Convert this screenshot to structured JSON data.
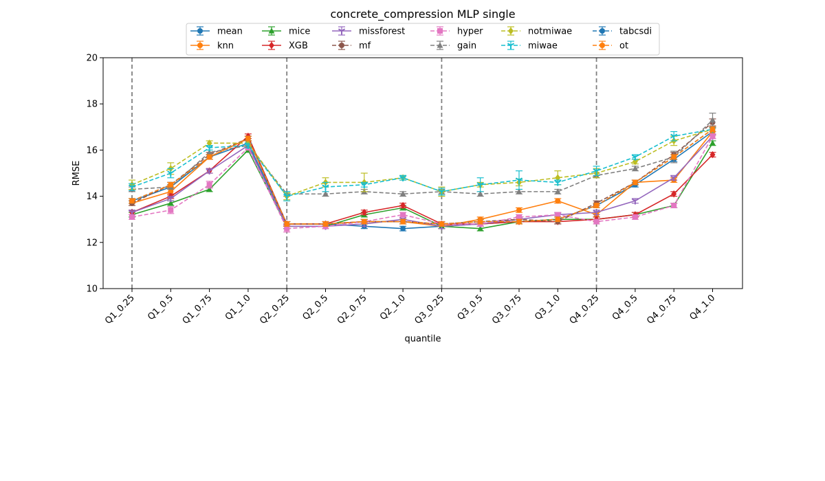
{
  "chart_data": {
    "type": "line",
    "title": "concrete_compression MLP single",
    "xlabel": "quantile",
    "ylabel": "RMSE",
    "ylim": [
      10,
      20
    ],
    "yticks": [
      10,
      12,
      14,
      16,
      18,
      20
    ],
    "grid": false,
    "legend_position": "top-center",
    "vlines_at": [
      "Q1_0.25",
      "Q2_0.25",
      "Q3_0.25",
      "Q4_0.25"
    ],
    "categories": [
      "Q1_0.25",
      "Q1_0.5",
      "Q1_0.75",
      "Q1_1.0",
      "Q2_0.25",
      "Q2_0.5",
      "Q2_0.75",
      "Q2_1.0",
      "Q3_0.25",
      "Q3_0.5",
      "Q3_0.75",
      "Q3_1.0",
      "Q4_0.25",
      "Q4_0.5",
      "Q4_0.75",
      "Q4_1.0"
    ],
    "series": [
      {
        "name": "mean",
        "color": "#1f77b4",
        "dash": "solid",
        "marker": "circle",
        "values": [
          13.8,
          14.4,
          15.7,
          16.3,
          12.8,
          12.8,
          12.7,
          12.6,
          12.7,
          12.8,
          12.9,
          13.0,
          13.6,
          14.5,
          15.6,
          16.8
        ],
        "errors": [
          0.1,
          0.1,
          0.1,
          0.1,
          0.1,
          0.1,
          0.1,
          0.1,
          0.1,
          0.1,
          0.1,
          0.1,
          0.1,
          0.1,
          0.1,
          0.15
        ]
      },
      {
        "name": "knn",
        "color": "#ff7f0e",
        "dash": "solid",
        "marker": "circle",
        "values": [
          13.7,
          14.2,
          15.7,
          16.5,
          12.8,
          12.8,
          12.9,
          12.9,
          12.7,
          13.0,
          13.4,
          13.8,
          13.2,
          14.6,
          14.7,
          16.8
        ],
        "errors": [
          0.1,
          0.15,
          0.1,
          0.1,
          0.1,
          0.1,
          0.1,
          0.1,
          0.1,
          0.1,
          0.1,
          0.1,
          0.1,
          0.1,
          0.1,
          0.15
        ]
      },
      {
        "name": "mice",
        "color": "#2ca02c",
        "dash": "solid",
        "marker": "triangle",
        "values": [
          13.2,
          13.7,
          14.3,
          16.0,
          12.7,
          12.7,
          13.2,
          13.5,
          12.7,
          12.6,
          12.9,
          13.0,
          13.0,
          13.2,
          13.6,
          16.3
        ],
        "errors": [
          0.1,
          0.1,
          0.1,
          0.1,
          0.1,
          0.1,
          0.1,
          0.1,
          0.1,
          0.1,
          0.1,
          0.1,
          0.1,
          0.1,
          0.1,
          0.1
        ]
      },
      {
        "name": "XGB",
        "color": "#d62728",
        "dash": "solid",
        "marker": "diamond",
        "values": [
          13.3,
          14.0,
          15.1,
          16.6,
          12.8,
          12.8,
          13.3,
          13.6,
          12.8,
          12.8,
          12.9,
          12.9,
          13.0,
          13.2,
          14.1,
          15.8
        ],
        "errors": [
          0.1,
          0.1,
          0.1,
          0.1,
          0.1,
          0.1,
          0.1,
          0.1,
          0.1,
          0.1,
          0.1,
          0.1,
          0.1,
          0.1,
          0.1,
          0.1
        ]
      },
      {
        "name": "missforest",
        "color": "#9467bd",
        "dash": "solid",
        "marker": "tri_down",
        "values": [
          13.3,
          13.9,
          15.1,
          16.2,
          12.7,
          12.7,
          12.8,
          13.0,
          12.7,
          12.8,
          13.0,
          13.2,
          13.3,
          13.8,
          14.8,
          16.6
        ],
        "errors": [
          0.1,
          0.1,
          0.1,
          0.1,
          0.1,
          0.1,
          0.1,
          0.1,
          0.1,
          0.1,
          0.1,
          0.1,
          0.1,
          0.1,
          0.1,
          0.1
        ]
      },
      {
        "name": "mf",
        "color": "#8c564b",
        "dash": "dashed",
        "marker": "circle",
        "values": [
          13.7,
          14.5,
          15.8,
          16.5,
          12.8,
          12.8,
          12.9,
          12.9,
          12.8,
          12.9,
          13.0,
          12.9,
          13.7,
          14.6,
          15.8,
          17.2
        ],
        "errors": [
          0.1,
          0.1,
          0.1,
          0.1,
          0.1,
          0.1,
          0.1,
          0.1,
          0.1,
          0.1,
          0.1,
          0.1,
          0.1,
          0.1,
          0.1,
          0.15
        ]
      },
      {
        "name": "hyper",
        "color": "#e377c2",
        "dash": "dashed",
        "marker": "square",
        "values": [
          13.1,
          13.4,
          14.5,
          16.1,
          12.6,
          12.7,
          12.9,
          13.2,
          12.8,
          12.8,
          13.1,
          13.2,
          12.9,
          13.1,
          13.6,
          16.6
        ],
        "errors": [
          0.1,
          0.15,
          0.15,
          0.1,
          0.15,
          0.1,
          0.1,
          0.1,
          0.1,
          0.1,
          0.1,
          0.1,
          0.1,
          0.1,
          0.1,
          0.1
        ]
      },
      {
        "name": "gain",
        "color": "#7f7f7f",
        "dash": "dashed",
        "marker": "triangle",
        "values": [
          14.3,
          14.4,
          15.9,
          16.2,
          14.1,
          14.1,
          14.2,
          14.1,
          14.2,
          14.1,
          14.2,
          14.2,
          14.9,
          15.2,
          15.7,
          17.3
        ],
        "errors": [
          0.1,
          0.1,
          0.1,
          0.1,
          0.1,
          0.1,
          0.1,
          0.1,
          0.1,
          0.1,
          0.1,
          0.1,
          0.1,
          0.1,
          0.25,
          0.3
        ]
      },
      {
        "name": "notmiwae",
        "color": "#bcbd22",
        "dash": "dashed",
        "marker": "diamond",
        "values": [
          14.5,
          15.2,
          16.3,
          16.3,
          14.0,
          14.6,
          14.6,
          14.8,
          14.2,
          14.5,
          14.6,
          14.8,
          15.0,
          15.5,
          16.4,
          16.9
        ],
        "errors": [
          0.2,
          0.25,
          0.1,
          0.1,
          0.15,
          0.2,
          0.4,
          0.1,
          0.2,
          0.1,
          0.15,
          0.3,
          0.2,
          0.1,
          0.2,
          0.1
        ]
      },
      {
        "name": "miwae",
        "color": "#17becf",
        "dash": "dashed",
        "marker": "tri_down",
        "values": [
          14.4,
          15.0,
          16.1,
          16.2,
          14.0,
          14.4,
          14.5,
          14.8,
          14.2,
          14.5,
          14.7,
          14.6,
          15.1,
          15.7,
          16.6,
          16.9
        ],
        "errors": [
          0.15,
          0.2,
          0.1,
          0.1,
          0.2,
          0.2,
          0.1,
          0.1,
          0.15,
          0.3,
          0.4,
          0.1,
          0.2,
          0.1,
          0.2,
          0.1
        ]
      },
      {
        "name": "tabcsdi",
        "color": "#1f77b4",
        "dash": "dashed",
        "marker": "circle",
        "values": [
          13.8,
          14.5,
          15.7,
          16.5,
          12.8,
          12.8,
          12.9,
          12.9,
          12.8,
          12.9,
          12.9,
          13.0,
          13.6,
          14.6,
          15.7,
          16.9
        ],
        "errors": [
          0.1,
          0.1,
          0.1,
          0.1,
          0.1,
          0.1,
          0.1,
          0.1,
          0.1,
          0.1,
          0.1,
          0.1,
          0.1,
          0.1,
          0.1,
          0.1
        ]
      },
      {
        "name": "ot",
        "color": "#ff7f0e",
        "dash": "dashed",
        "marker": "circle",
        "values": [
          13.8,
          14.5,
          15.7,
          16.5,
          12.8,
          12.8,
          12.9,
          12.9,
          12.8,
          12.9,
          12.9,
          13.0,
          13.6,
          14.6,
          15.7,
          16.9
        ],
        "errors": [
          0.1,
          0.1,
          0.1,
          0.1,
          0.1,
          0.1,
          0.1,
          0.1,
          0.1,
          0.1,
          0.1,
          0.1,
          0.1,
          0.1,
          0.1,
          0.1
        ]
      }
    ]
  }
}
